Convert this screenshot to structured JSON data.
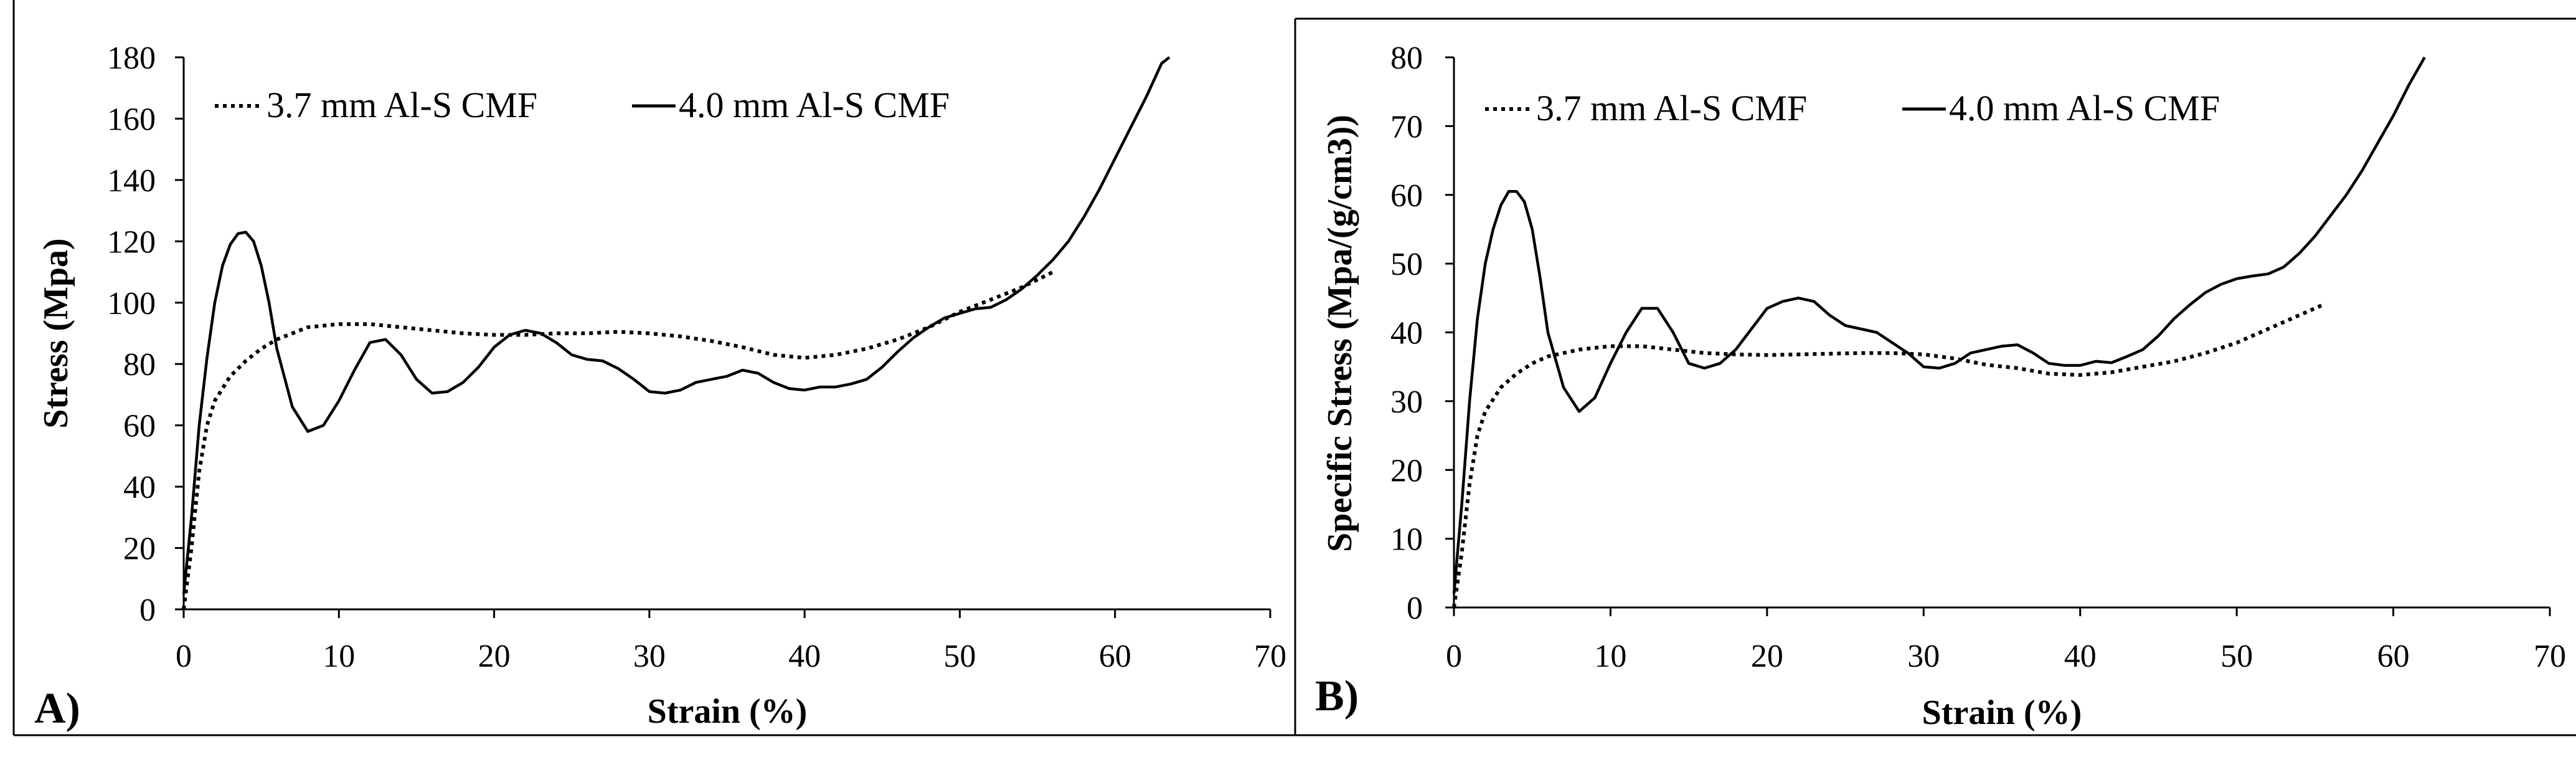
{
  "chart_data": [
    {
      "type": "line",
      "panel_label": "A)",
      "xlabel": "Strain (%)",
      "ylabel": "Stress (Mpa)",
      "xlim": [
        0,
        70
      ],
      "ylim": [
        0,
        180
      ],
      "xticks": [
        0,
        10,
        20,
        30,
        40,
        50,
        60,
        70
      ],
      "yticks": [
        0,
        20,
        40,
        60,
        80,
        100,
        120,
        140,
        160,
        180
      ],
      "legend": [
        "3.7 mm Al-S CMF",
        "4.0 mm Al-S CMF"
      ],
      "series": [
        {
          "name": "3.7 mm Al-S CMF",
          "style": "dotted",
          "x": [
            0,
            0.5,
            1,
            1.5,
            2,
            3,
            4,
            5,
            6,
            8,
            10,
            12,
            14,
            16,
            18,
            20,
            22,
            24,
            26,
            28,
            30,
            32,
            34,
            36,
            38,
            40,
            42,
            44,
            46,
            48,
            50,
            52,
            54,
            56
          ],
          "y": [
            0,
            20,
            45,
            60,
            68,
            76,
            81,
            85,
            88,
            92,
            93,
            93,
            92,
            91,
            90,
            89.5,
            89.5,
            90,
            90,
            90.5,
            90,
            89,
            87.5,
            85.5,
            83,
            82,
            83,
            85,
            88,
            92,
            97,
            101,
            105,
            110
          ]
        },
        {
          "name": "4.0 mm Al-S CMF",
          "style": "solid",
          "x": [
            0,
            0.5,
            1,
            1.5,
            2,
            2.5,
            3,
            3.5,
            4,
            4.5,
            5,
            5.5,
            6,
            7,
            8,
            9,
            10,
            11,
            12,
            13,
            14,
            15,
            16,
            17,
            18,
            19,
            20,
            21,
            22,
            23,
            24,
            25,
            26,
            27,
            28,
            29,
            30,
            31,
            32,
            33,
            34,
            35,
            36,
            37,
            38,
            39,
            40,
            41,
            42,
            43,
            44,
            45,
            46,
            47,
            48,
            49,
            50,
            51,
            52,
            53,
            54,
            55,
            56,
            57,
            58,
            59,
            60,
            61,
            62,
            63,
            63.5
          ],
          "y": [
            5,
            30,
            60,
            82,
            100,
            112,
            119,
            122.5,
            123,
            120,
            112,
            100,
            85,
            66,
            58,
            60,
            68,
            78,
            87,
            88,
            83,
            75,
            70.5,
            71,
            74,
            79,
            85.5,
            89.5,
            91,
            90,
            87,
            83,
            81.5,
            81,
            78.5,
            75,
            71,
            70.5,
            71.5,
            74,
            75,
            76,
            78,
            77,
            74,
            72,
            71.5,
            72.5,
            72.5,
            73.5,
            75,
            79,
            84,
            88.5,
            92,
            95,
            96.5,
            98,
            98.5,
            101,
            104.5,
            109,
            114,
            120,
            128,
            137,
            147,
            157,
            167,
            178,
            180
          ]
        }
      ]
    },
    {
      "type": "line",
      "panel_label": "B)",
      "xlabel": "Strain (%)",
      "ylabel": "Specific Stress (Mpa/(g/cm3))",
      "xlim": [
        0,
        70
      ],
      "ylim": [
        0,
        80
      ],
      "xticks": [
        0,
        10,
        20,
        30,
        40,
        50,
        60,
        70
      ],
      "yticks": [
        0,
        10,
        20,
        30,
        40,
        50,
        60,
        70,
        80
      ],
      "legend": [
        "3.7 mm Al-S CMF",
        "4.0 mm Al-S CMF"
      ],
      "series": [
        {
          "name": "3.7 mm Al-S CMF",
          "style": "dotted",
          "x": [
            0,
            0.5,
            1,
            1.5,
            2,
            3,
            4,
            5,
            6,
            8,
            10,
            12,
            14,
            16,
            18,
            20,
            22,
            24,
            26,
            28,
            30,
            32,
            34,
            36,
            38,
            40,
            42,
            44,
            46,
            48,
            50,
            52,
            54,
            55.5
          ],
          "y": [
            0,
            8,
            18,
            25,
            28.5,
            32,
            34,
            35.5,
            36.5,
            37.5,
            38,
            38,
            37.5,
            37,
            36.8,
            36.7,
            36.8,
            36.9,
            37,
            37,
            36.8,
            36.2,
            35.3,
            34.8,
            34,
            33.8,
            34.2,
            35,
            35.8,
            37,
            38.5,
            40.5,
            42.5,
            44
          ]
        },
        {
          "name": "4.0 mm Al-S CMF",
          "style": "solid",
          "x": [
            0,
            0.5,
            1,
            1.5,
            2,
            2.5,
            3,
            3.5,
            4,
            4.5,
            5,
            5.5,
            6,
            7,
            8,
            9,
            10,
            11,
            12,
            13,
            14,
            15,
            16,
            17,
            18,
            19,
            20,
            21,
            22,
            23,
            24,
            25,
            26,
            27,
            28,
            29,
            30,
            31,
            32,
            33,
            34,
            35,
            36,
            37,
            38,
            39,
            40,
            41,
            42,
            43,
            44,
            45,
            46,
            47,
            48,
            49,
            50,
            51,
            52,
            53,
            54,
            55,
            56,
            57,
            58,
            59,
            60,
            61,
            62
          ],
          "y": [
            2,
            15,
            30,
            42,
            50,
            55,
            58.5,
            60.5,
            60.5,
            59,
            55,
            48,
            40,
            32,
            28.5,
            30.5,
            35.5,
            40,
            43.5,
            43.5,
            40,
            35.5,
            34.8,
            35.5,
            37.5,
            40.5,
            43.5,
            44.5,
            45,
            44.5,
            42.5,
            41,
            40.5,
            40,
            38.5,
            37,
            35,
            34.8,
            35.5,
            37,
            37.5,
            38,
            38.2,
            37,
            35.5,
            35.2,
            35.2,
            35.8,
            35.6,
            36.5,
            37.5,
            39.5,
            42,
            44,
            45.8,
            47,
            47.8,
            48.2,
            48.5,
            49.5,
            51.5,
            54,
            57,
            60,
            63.5,
            67.5,
            71.5,
            76,
            80
          ]
        }
      ]
    }
  ]
}
